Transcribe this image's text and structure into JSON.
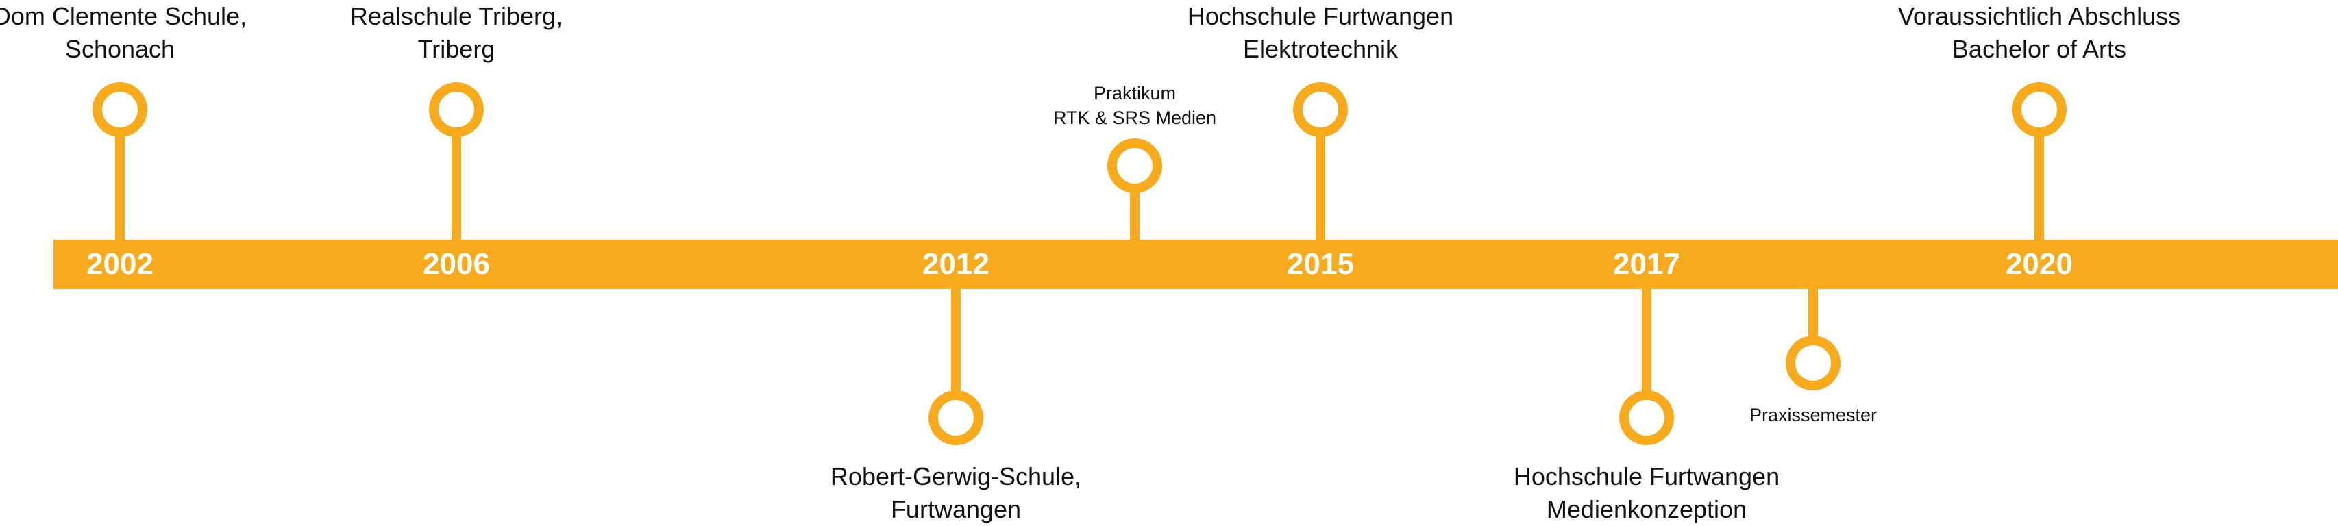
{
  "colors": {
    "accent": "#F6AA1C",
    "node_fill": "#ffffff",
    "year_text": "#ffffff",
    "label_text": "#111111"
  },
  "milestones": [
    {
      "year": "2002",
      "label": [
        "Dom Clemente Schule,",
        "Schonach"
      ]
    },
    {
      "year": "2006",
      "label": [
        "Realschule Triberg,",
        "Triberg"
      ]
    },
    {
      "year": "2012",
      "label": [
        "Robert-Gerwig-Schule,",
        "Furtwangen"
      ]
    },
    {
      "year": "",
      "label": [
        "Praktikum",
        "RTK & SRS Medien"
      ]
    },
    {
      "year": "2015",
      "label": [
        "Hochschule Furtwangen",
        "Elektrotechnik"
      ]
    },
    {
      "year": "2017",
      "label": [
        "Hochschule Furtwangen",
        "Medienkonzeption"
      ]
    },
    {
      "year": "",
      "label": [
        "Praxissemester"
      ]
    },
    {
      "year": "2020",
      "label": [
        "Voraussichtlich Abschluss",
        "Bachelor of Arts"
      ]
    }
  ]
}
